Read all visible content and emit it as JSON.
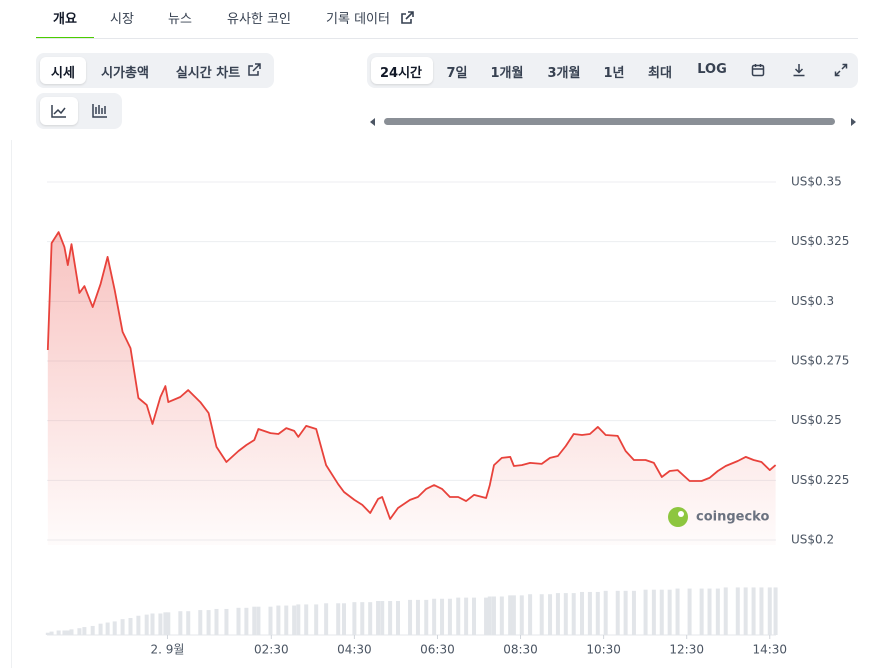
{
  "tabs": [
    "개요",
    "시장",
    "뉴스",
    "유사한 코인",
    "기록 데이터"
  ],
  "view_buttons": [
    "시세",
    "시가총액",
    "실시간 차트"
  ],
  "range_buttons": [
    "24시간",
    "7일",
    "1개월",
    "3개월",
    "1년",
    "최대",
    "LOG"
  ],
  "chart_data": {
    "type": "line",
    "x": [
      -2.88,
      -2.79,
      -2.62,
      -2.48,
      -2.4,
      -2.31,
      -2.12,
      -2.0,
      -1.8,
      -1.61,
      -1.44,
      -1.27,
      -1.08,
      -0.89,
      -0.7,
      -0.5,
      -0.36,
      -0.17,
      -0.05,
      0.02,
      0.31,
      0.5,
      0.79,
      0.99,
      1.18,
      1.42,
      1.71,
      1.9,
      2.09,
      2.19,
      2.48,
      2.67,
      2.86,
      3.05,
      3.15,
      3.34,
      3.58,
      3.82,
      4.11,
      4.25,
      4.5,
      4.69,
      4.88,
      5.07,
      5.17,
      5.36,
      5.55,
      5.84,
      6.03,
      6.23,
      6.42,
      6.61,
      6.8,
      7.0,
      7.19,
      7.38,
      7.67,
      7.76,
      7.86,
      8.05,
      8.25,
      8.34,
      8.53,
      8.73,
      9.01,
      9.21,
      9.4,
      9.59,
      9.78,
      9.98,
      10.17,
      10.36,
      10.55,
      10.84,
      11.03,
      11.23,
      11.51,
      11.71,
      11.9,
      12.09,
      12.28,
      12.57,
      12.86,
      13.05,
      13.25,
      13.44,
      13.73,
      13.92,
      14.11,
      14.3,
      14.5,
      14.64
    ],
    "series": [
      {
        "color": "#e8423b",
        "values": [
          0.2796,
          0.3244,
          0.329,
          0.3228,
          0.3152,
          0.324,
          0.3035,
          0.3064,
          0.2976,
          0.3073,
          0.3186,
          0.3047,
          0.2872,
          0.2804,
          0.2595,
          0.2566,
          0.2486,
          0.2599,
          0.2645,
          0.2578,
          0.2599,
          0.2628,
          0.2578,
          0.2532,
          0.239,
          0.2327,
          0.2373,
          0.2398,
          0.2419,
          0.2465,
          0.2448,
          0.2444,
          0.2469,
          0.2457,
          0.2432,
          0.2478,
          0.2465,
          0.2314,
          0.2234,
          0.2201,
          0.2168,
          0.2147,
          0.2113,
          0.2172,
          0.218,
          0.2088,
          0.2134,
          0.2168,
          0.218,
          0.2214,
          0.223,
          0.2214,
          0.218,
          0.218,
          0.2163,
          0.2189,
          0.2176,
          0.223,
          0.2314,
          0.2344,
          0.2348,
          0.231,
          0.2314,
          0.2323,
          0.2319,
          0.2344,
          0.2352,
          0.2394,
          0.2444,
          0.244,
          0.2444,
          0.2474,
          0.244,
          0.2436,
          0.2373,
          0.2335,
          0.2335,
          0.2323,
          0.2264,
          0.2289,
          0.2293,
          0.2247,
          0.2247,
          0.226,
          0.2289,
          0.231,
          0.2331,
          0.2348,
          0.2335,
          0.2327,
          0.2293,
          0.2314
        ]
      },
      {
        "type": "bar",
        "axis": "y2",
        "color": "#e2e5e9",
        "values": [
          2,
          3,
          4,
          4,
          4,
          5,
          6,
          7,
          8,
          10,
          11,
          12,
          14,
          15,
          17,
          18,
          19,
          19,
          20,
          20,
          21,
          21,
          22,
          22,
          23,
          23,
          24,
          24,
          25,
          25,
          25,
          26,
          26,
          26,
          27,
          27,
          27,
          28,
          28,
          28,
          29,
          29,
          29,
          30,
          30,
          30,
          30,
          31,
          31,
          31,
          32,
          32,
          32,
          33,
          33,
          33,
          33,
          34,
          34,
          34,
          35,
          35,
          35,
          36,
          36,
          36,
          37,
          37,
          37,
          38,
          38,
          38,
          39,
          39,
          39,
          39,
          40,
          40,
          40,
          40,
          41,
          41,
          41,
          41,
          41,
          42,
          42,
          42,
          42,
          42,
          42,
          42
        ]
      }
    ],
    "xlim": [
      -2.9,
      14.65
    ],
    "xticks": [
      {
        "value": 0,
        "label": "2. 9월"
      },
      {
        "value": 2.5,
        "label": "02:30"
      },
      {
        "value": 4.5,
        "label": "04:30"
      },
      {
        "value": 6.5,
        "label": "06:30"
      },
      {
        "value": 8.5,
        "label": "08:30"
      },
      {
        "value": 10.5,
        "label": "10:30"
      },
      {
        "value": 12.5,
        "label": "12:30"
      },
      {
        "value": 14.5,
        "label": "14:30"
      }
    ],
    "ylim": [
      0.2,
      0.35
    ],
    "yticks": [
      {
        "value": 0.35,
        "label": "US$0.35"
      },
      {
        "value": 0.325,
        "label": "US$0.325"
      },
      {
        "value": 0.3,
        "label": "US$0.3"
      },
      {
        "value": 0.275,
        "label": "US$0.275"
      },
      {
        "value": 0.25,
        "label": "US$0.25"
      },
      {
        "value": 0.225,
        "label": "US$0.225"
      },
      {
        "value": 0.2,
        "label": "US$0.2"
      }
    ],
    "y2lim": [
      0,
      400
    ],
    "grid": true,
    "watermark": "coingecko"
  }
}
